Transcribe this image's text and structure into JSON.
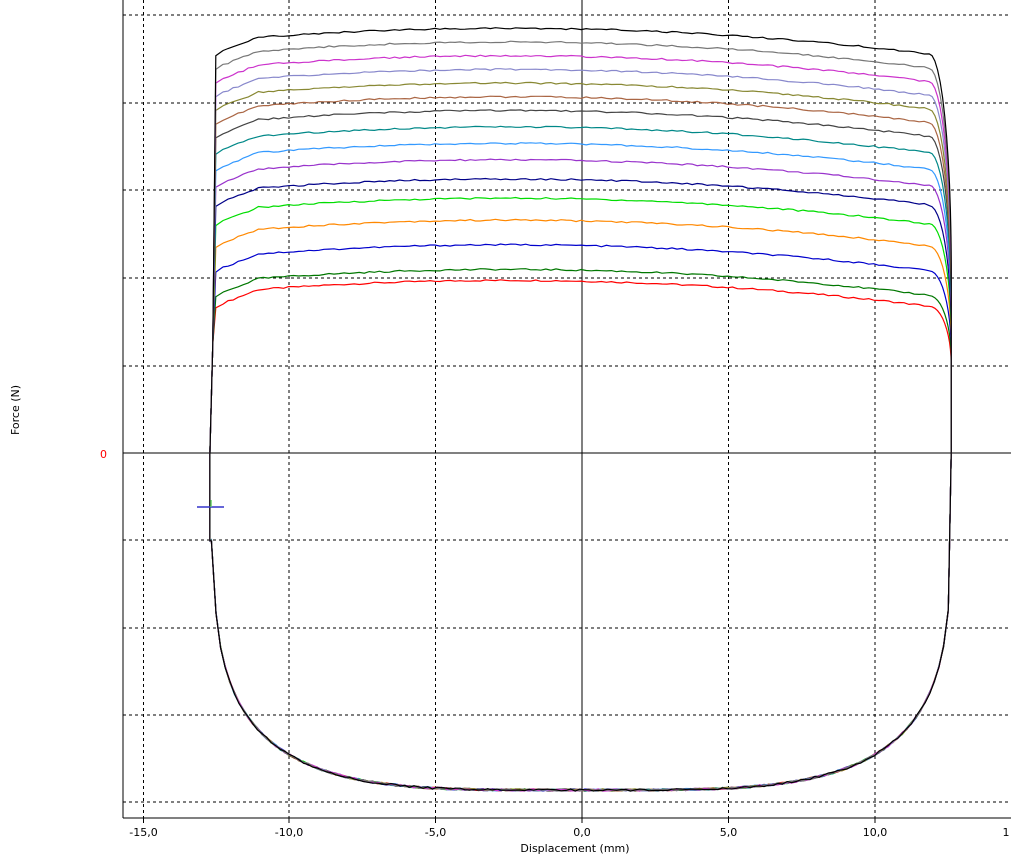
{
  "chart_data": {
    "type": "line",
    "xlabel": "Displacement (mm)",
    "ylabel": "Force (N)",
    "xlim": [
      -15.5,
      14.5
    ],
    "x_ticks": [
      "-15,0",
      "-10,0",
      "-5,0",
      "0,0",
      "5,0",
      "10,0",
      "1"
    ],
    "y_zero_label": "0",
    "grid": true,
    "grid_style": "dashed",
    "y_scale_note": "no numeric y tick labels shown except 0",
    "series_colors": [
      "#ff0000",
      "#007700",
      "#0000cc",
      "#ff8800",
      "#00dd00",
      "#000088",
      "#9933cc",
      "#3399ff",
      "#008888",
      "#444444",
      "#aa6644",
      "#888833",
      "#8888cc",
      "#cc33cc",
      "#777777",
      "#000000"
    ],
    "series": [
      {
        "top_level": 0.315
      },
      {
        "top_level": 0.335
      },
      {
        "top_level": 0.38
      },
      {
        "top_level": 0.425
      },
      {
        "top_level": 0.465
      },
      {
        "top_level": 0.5
      },
      {
        "top_level": 0.535
      },
      {
        "top_level": 0.565
      },
      {
        "top_level": 0.595
      },
      {
        "top_level": 0.625
      },
      {
        "top_level": 0.65
      },
      {
        "top_level": 0.675
      },
      {
        "top_level": 0.7
      },
      {
        "top_level": 0.725
      },
      {
        "top_level": 0.75
      },
      {
        "top_level": 0.775
      }
    ],
    "lower_curve_min": -0.615,
    "left_x": -12.7,
    "right_x": 12.6
  }
}
